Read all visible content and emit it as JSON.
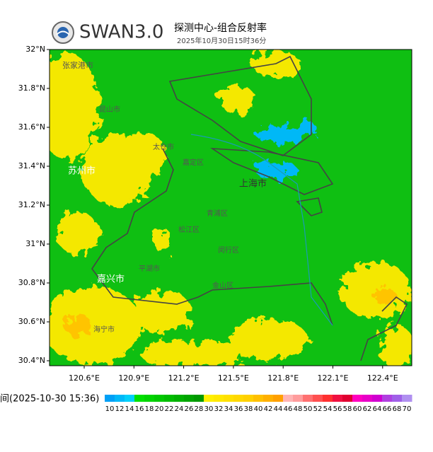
{
  "header": {
    "title": "SWAN3.0",
    "subtitle": "探测中心-组合反射率",
    "time": "2025年10月30日15时36分"
  },
  "map": {
    "lat_ticks": [
      "32°N",
      "31.8°N",
      "31.6°N",
      "31.4°N",
      "31.2°N",
      "31°N",
      "30.8°N",
      "30.6°N",
      "30.4°N"
    ],
    "lon_ticks": [
      "120.6°E",
      "120.9°E",
      "121.2°E",
      "121.5°E",
      "121.8°E",
      "122.1°E",
      "122.4°E"
    ],
    "places": [
      {
        "label": "张家港市"
      },
      {
        "label": "苏州市"
      },
      {
        "label": "上海市"
      },
      {
        "label": "嘉兴市"
      },
      {
        "label": "太仓市"
      },
      {
        "label": "嘉定区"
      },
      {
        "label": "昆山市"
      },
      {
        "label": "青浦区"
      },
      {
        "label": "松江区"
      },
      {
        "label": "闵行区"
      },
      {
        "label": "金山区"
      },
      {
        "label": "平湖市"
      },
      {
        "label": "海宁市"
      }
    ]
  },
  "legend": {
    "time_label": "间(2025-10-30 15:36)",
    "items": [
      {
        "label": "10",
        "color": "#01a0f6"
      },
      {
        "label": "12",
        "color": "#00b8f8"
      },
      {
        "label": "14",
        "color": "#00d0fa"
      },
      {
        "label": "16",
        "color": "#00e000"
      },
      {
        "label": "18",
        "color": "#00d400"
      },
      {
        "label": "20",
        "color": "#00c800"
      },
      {
        "label": "22",
        "color": "#00bc00"
      },
      {
        "label": "24",
        "color": "#00b000"
      },
      {
        "label": "26",
        "color": "#00a400"
      },
      {
        "label": "28",
        "color": "#009800"
      },
      {
        "label": "30",
        "color": "#fff000"
      },
      {
        "label": "32",
        "color": "#ffe800"
      },
      {
        "label": "34",
        "color": "#ffe000"
      },
      {
        "label": "36",
        "color": "#ffd800"
      },
      {
        "label": "38",
        "color": "#ffd000"
      },
      {
        "label": "40",
        "color": "#ffc000"
      },
      {
        "label": "42",
        "color": "#ffb000"
      },
      {
        "label": "44",
        "color": "#ffa000"
      },
      {
        "label": "46",
        "color": "#ffb4b4"
      },
      {
        "label": "48",
        "color": "#ff9c9c"
      },
      {
        "label": "50",
        "color": "#ff7070"
      },
      {
        "label": "52",
        "color": "#ff5050"
      },
      {
        "label": "54",
        "color": "#ff3030"
      },
      {
        "label": "56",
        "color": "#f01040"
      },
      {
        "label": "58",
        "color": "#e00030"
      },
      {
        "label": "60",
        "color": "#ff00c0"
      },
      {
        "label": "62",
        "color": "#e800c8"
      },
      {
        "label": "64",
        "color": "#d000d0"
      },
      {
        "label": "66",
        "color": "#b040e0"
      },
      {
        "label": "68",
        "color": "#a060e8"
      },
      {
        "label": "70",
        "color": "#b090f0"
      }
    ]
  }
}
